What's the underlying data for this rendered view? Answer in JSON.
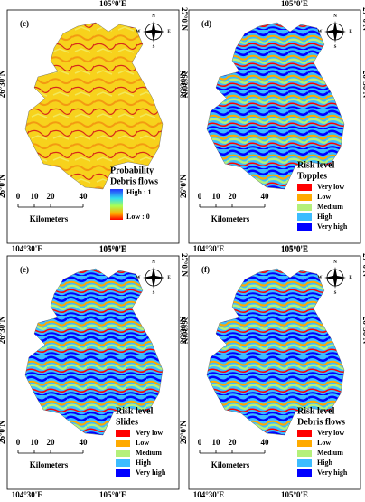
{
  "panels": [
    {
      "label": "(c)",
      "top_lon": "105°0'E",
      "bottom_lons": [
        "104°30'E",
        "105°0'E"
      ],
      "left_lats": [
        "26°30'N",
        "26°0'N"
      ],
      "right_lats": [
        "27°0'N",
        "26°30'N"
      ],
      "compass": [
        "N",
        "S",
        "W",
        "E"
      ],
      "scale": [
        "0",
        "10",
        "20",
        "40"
      ],
      "scale_unit": "Kilometers",
      "legend": {
        "title": "Probability",
        "subtitle": "Debris flows",
        "high": "High : 1",
        "low": "Low : 0"
      }
    },
    {
      "label": "(d)",
      "top_lon": "105°0'E",
      "bottom_lons": [
        "104°30'E",
        "105°0'E"
      ],
      "left_lats": [
        "26°30'N",
        "26°0'N"
      ],
      "right_lats": [
        "27°0'N",
        "26°30'N"
      ],
      "compass": [
        "N",
        "S",
        "W",
        "E"
      ],
      "scale": [
        "0",
        "10",
        "20",
        "40"
      ],
      "scale_unit": "Kilometers",
      "legend": {
        "title": "Risk level",
        "subtitle": "Topples",
        "items": [
          {
            "label": "Very low",
            "color": "#ff0000"
          },
          {
            "label": "Low",
            "color": "#ffaa00"
          },
          {
            "label": "Medium",
            "color": "#b4f07a"
          },
          {
            "label": "High",
            "color": "#3cbcff"
          },
          {
            "label": "Very high",
            "color": "#0000ff"
          }
        ]
      }
    },
    {
      "label": "(e)",
      "top_lon": "105°0'E",
      "bottom_lons": [
        "104°30'E",
        "105°0'E"
      ],
      "left_lats": [
        "26°30'N",
        "26°0'N"
      ],
      "right_lats": [
        "27°0'N",
        "26°30'N"
      ],
      "compass": [
        "N",
        "S",
        "W",
        "E"
      ],
      "scale": [
        "0",
        "10",
        "20",
        "40"
      ],
      "scale_unit": "Kilometers",
      "legend": {
        "title": "Risk level",
        "subtitle": "Slides",
        "items": [
          {
            "label": "Very low",
            "color": "#ff0000"
          },
          {
            "label": "Low",
            "color": "#ffaa00"
          },
          {
            "label": "Medium",
            "color": "#b4f07a"
          },
          {
            "label": "High",
            "color": "#3cbcff"
          },
          {
            "label": "Very high",
            "color": "#0000ff"
          }
        ]
      }
    },
    {
      "label": "(f)",
      "top_lon": "105°0'E",
      "bottom_lons": [
        "104°30'E",
        "105°0'E"
      ],
      "left_lats": [
        "26°30'N",
        "26°0'N"
      ],
      "right_lats": [
        "27°0'N",
        "26°30'N"
      ],
      "compass": [
        "N",
        "S",
        "W",
        "E"
      ],
      "scale": [
        "0",
        "10",
        "20",
        "40"
      ],
      "scale_unit": "Kilometers",
      "legend": {
        "title": "Risk level",
        "subtitle": "Debris flows",
        "items": [
          {
            "label": "Very low",
            "color": "#ff0000"
          },
          {
            "label": "Low",
            "color": "#ffaa00"
          },
          {
            "label": "Medium",
            "color": "#b4f07a"
          },
          {
            "label": "High",
            "color": "#3cbcff"
          },
          {
            "label": "Very high",
            "color": "#0000ff"
          }
        ]
      }
    }
  ]
}
